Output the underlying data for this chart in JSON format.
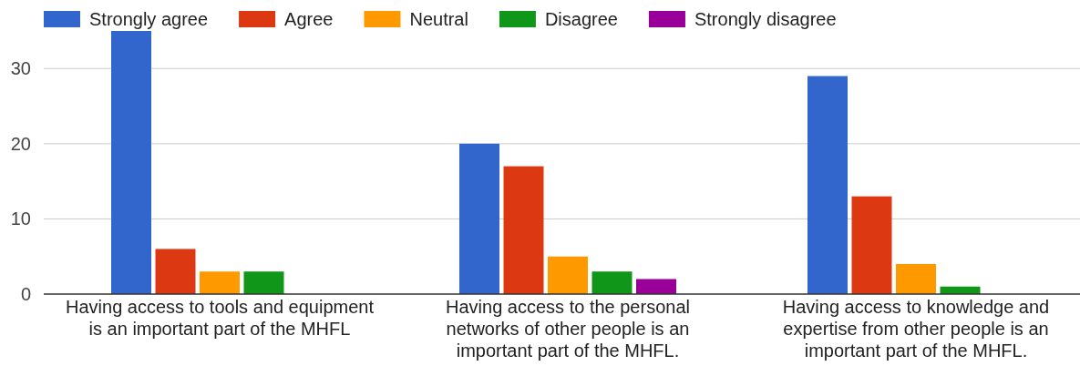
{
  "chart_data": {
    "type": "bar",
    "categories": [
      "Having access to tools and equipment\nis an important part of the MHFL",
      "Having access to the personal\nnetworks of other people is an\nimportant part of the MHFL.",
      "Having access to knowledge and\nexpertise from other people is an\nimportant part of the MHFL."
    ],
    "series": [
      {
        "name": "Strongly agree",
        "color": "#3366cc",
        "values": [
          35,
          20,
          29
        ]
      },
      {
        "name": "Agree",
        "color": "#dc3912",
        "values": [
          6,
          17,
          13
        ]
      },
      {
        "name": "Neutral",
        "color": "#ff9900",
        "values": [
          3,
          5,
          4
        ]
      },
      {
        "name": "Disagree",
        "color": "#109618",
        "values": [
          3,
          3,
          1
        ]
      },
      {
        "name": "Strongly disagree",
        "color": "#990099",
        "values": [
          0,
          2,
          0
        ]
      }
    ],
    "ylim": [
      0,
      35
    ],
    "yticks": [
      0,
      10,
      20,
      30
    ],
    "grid": "y",
    "legend": "top"
  }
}
